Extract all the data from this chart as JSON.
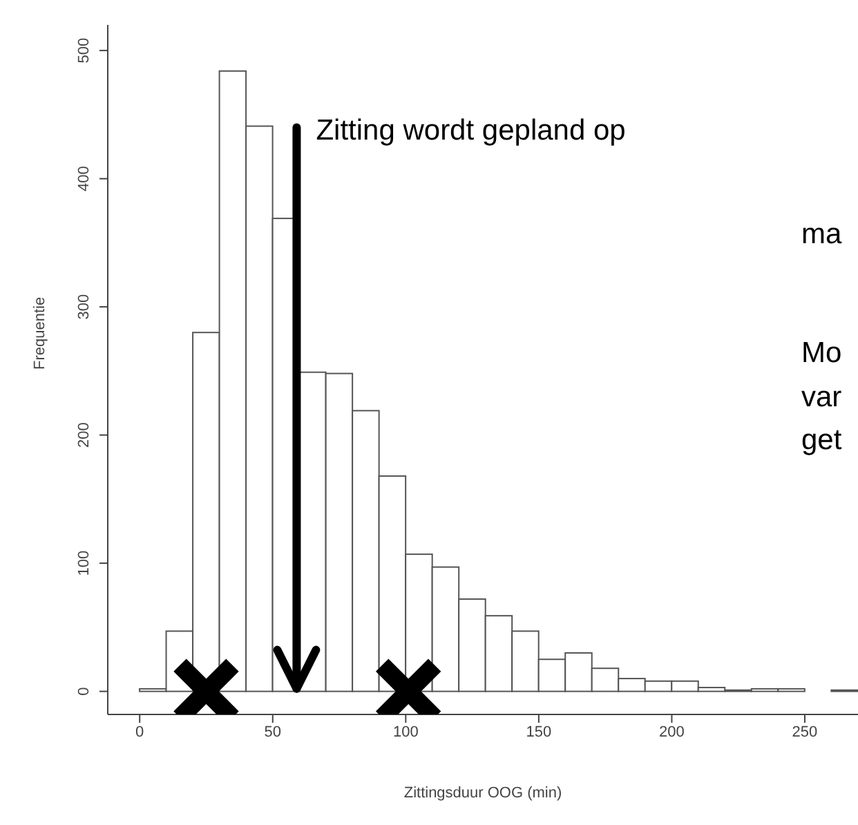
{
  "chart_data": {
    "type": "histogram",
    "xlabel": "Zittingsduur  OOG (min)",
    "ylabel": "Frequentie",
    "bins": [
      0,
      10,
      20,
      30,
      40,
      50,
      60,
      70,
      80,
      90,
      100,
      110,
      120,
      130,
      140,
      150,
      160,
      170,
      180,
      190,
      200,
      210,
      220,
      230,
      240,
      250,
      260,
      270
    ],
    "values": [
      2,
      47,
      280,
      484,
      441,
      369,
      249,
      248,
      219,
      168,
      107,
      97,
      72,
      59,
      47,
      25,
      30,
      18,
      10,
      8,
      8,
      3,
      1,
      2,
      2,
      0,
      1
    ],
    "color": "#ffffff",
    "series": [
      {
        "type": "scatter",
        "x": [
          25,
          101
        ],
        "values": [
          0,
          0
        ],
        "color": "#000000",
        "marker": "cross"
      }
    ],
    "xlim": [
      -12,
      270
    ],
    "xticks": [
      0,
      50,
      100,
      150,
      200,
      250
    ],
    "ylim": [
      -18,
      520
    ],
    "yticks": [
      0,
      100,
      200,
      300,
      400,
      500
    ],
    "ref_lines": [
      {
        "axis": "x",
        "value": 59,
        "label": "Zitting wordt gepland op",
        "color": "#000000"
      }
    ],
    "annotations": [
      "ma",
      "Mo",
      "var",
      "get"
    ]
  }
}
